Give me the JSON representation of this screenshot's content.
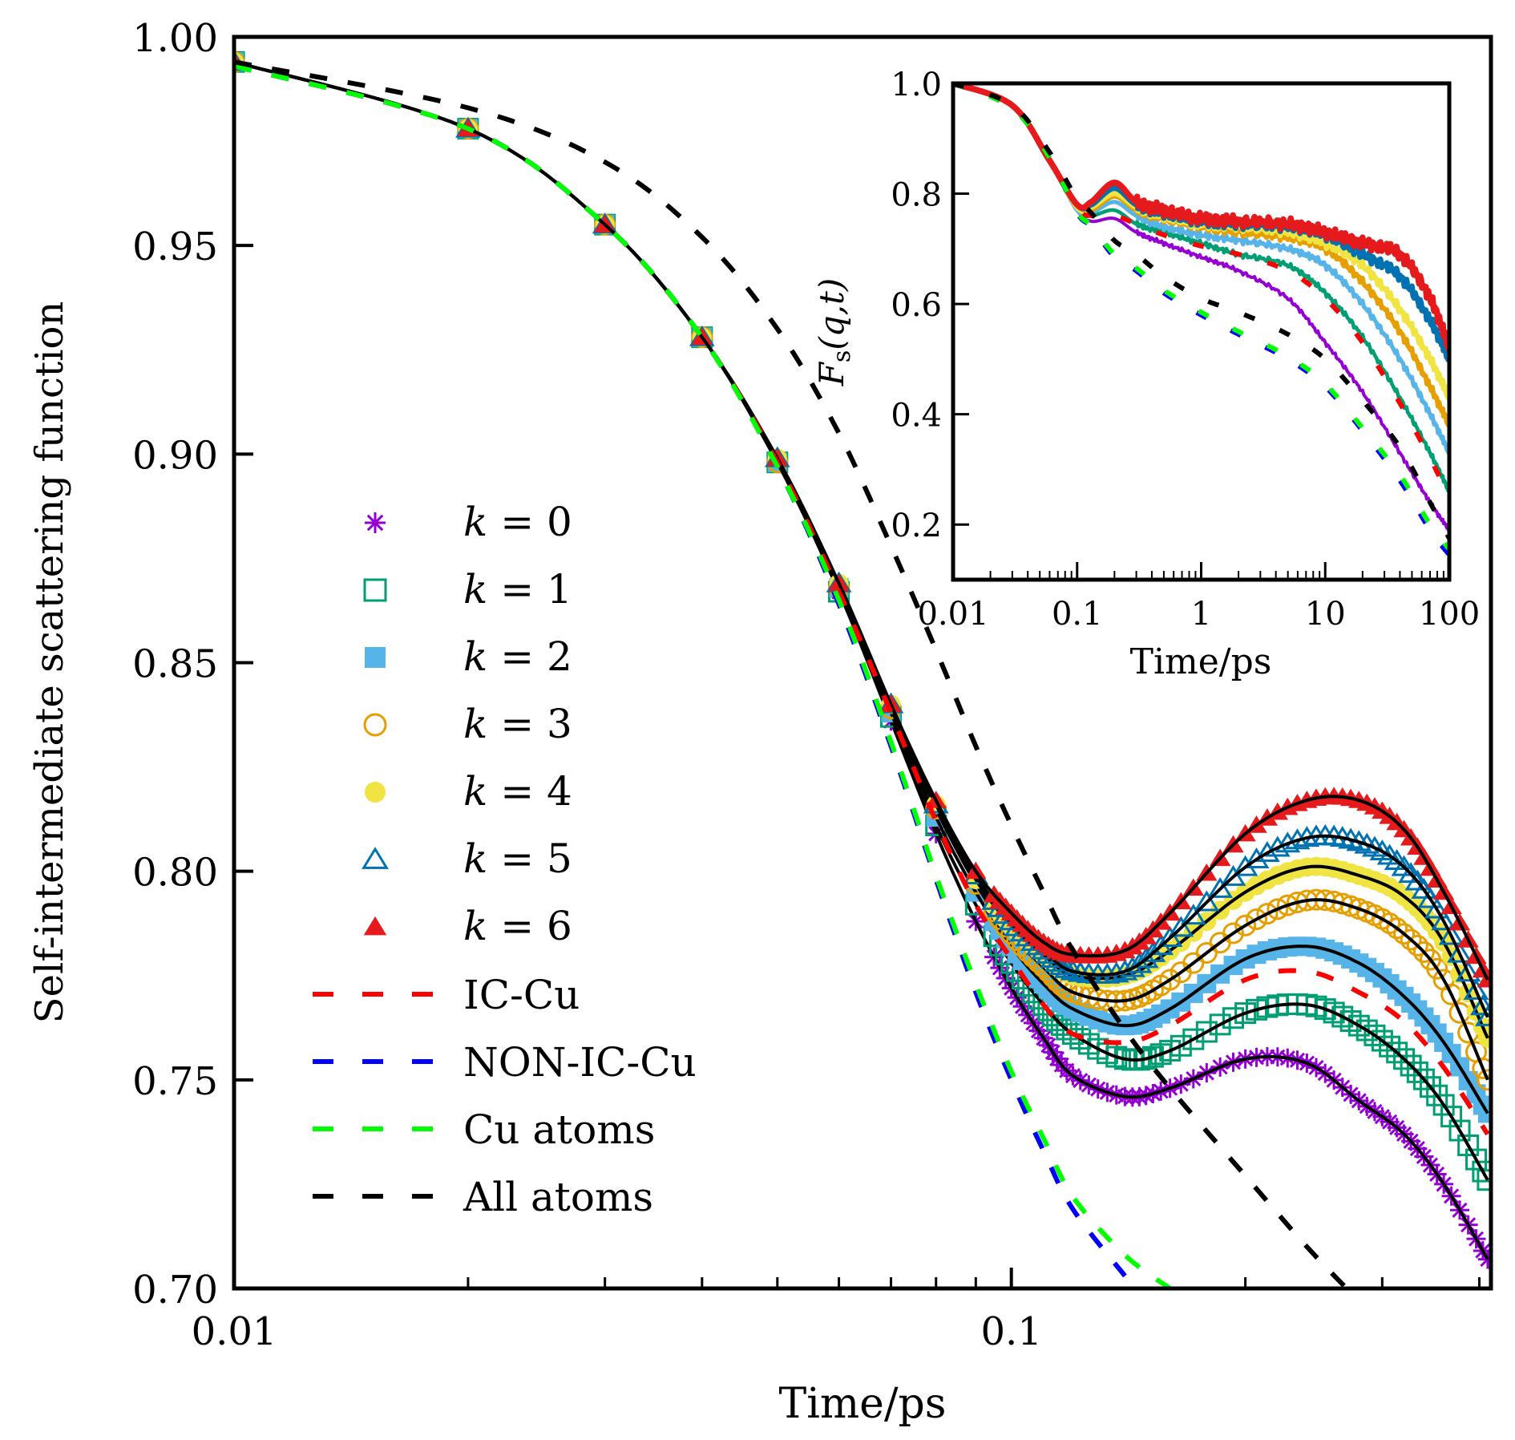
{
  "chart_data": [
    {
      "id": "main",
      "type": "scatter",
      "xscale": "log",
      "xlabel": "Time/ps",
      "ylabel": "Self-intermediate scattering function",
      "xlim": [
        0.01,
        0.414
      ],
      "ylim": [
        0.7,
        1.0
      ],
      "xticks": [
        {
          "value": 0.01,
          "label": "0.01"
        },
        {
          "value": 0.1,
          "label": "0.1"
        }
      ],
      "yticks": [
        {
          "value": 0.7,
          "label": "0.70"
        },
        {
          "value": 0.75,
          "label": "0.75"
        },
        {
          "value": 0.8,
          "label": "0.80"
        },
        {
          "value": 0.85,
          "label": "0.85"
        },
        {
          "value": 0.9,
          "label": "0.90"
        },
        {
          "value": 0.95,
          "label": "0.95"
        },
        {
          "value": 1.0,
          "label": "1.00"
        }
      ],
      "grid": false,
      "legend_position": "center-left",
      "x": [
        0.01,
        0.02,
        0.03,
        0.04,
        0.05,
        0.06,
        0.07,
        0.08,
        0.09,
        0.1,
        0.11,
        0.12,
        0.14,
        0.16,
        0.2,
        0.24,
        0.28,
        0.32,
        0.36,
        0.41
      ],
      "series": [
        {
          "name": "k = 0",
          "label": "k = 0",
          "marker": "asterisk",
          "color": "#9400d3",
          "fill": false,
          "values": [
            0.994,
            0.978,
            0.955,
            0.928,
            0.898,
            0.867,
            0.836,
            0.809,
            0.788,
            0.772,
            0.76,
            0.751,
            0.746,
            0.748,
            0.755,
            0.754,
            0.745,
            0.737,
            0.725,
            0.707
          ]
        },
        {
          "name": "k = 1",
          "label": "k = 1",
          "marker": "square-open",
          "color": "#009e73",
          "fill": false,
          "values": [
            0.994,
            0.978,
            0.955,
            0.928,
            0.898,
            0.867,
            0.837,
            0.811,
            0.792,
            0.778,
            0.768,
            0.761,
            0.755,
            0.757,
            0.766,
            0.768,
            0.763,
            0.755,
            0.744,
            0.726
          ]
        },
        {
          "name": "k = 2",
          "label": "k = 2",
          "marker": "square-filled",
          "color": "#56b4e9",
          "fill": true,
          "values": [
            0.994,
            0.978,
            0.955,
            0.928,
            0.898,
            0.868,
            0.838,
            0.813,
            0.795,
            0.782,
            0.773,
            0.767,
            0.763,
            0.767,
            0.779,
            0.782,
            0.778,
            0.77,
            0.759,
            0.742
          ]
        },
        {
          "name": "k = 3",
          "label": "k = 3",
          "marker": "circle-open",
          "color": "#e69f00",
          "fill": false,
          "values": [
            0.994,
            0.978,
            0.955,
            0.928,
            0.898,
            0.868,
            0.839,
            0.815,
            0.797,
            0.785,
            0.777,
            0.771,
            0.769,
            0.774,
            0.787,
            0.793,
            0.791,
            0.785,
            0.774,
            0.75
          ]
        },
        {
          "name": "k = 4",
          "label": "k = 4",
          "marker": "circle-filled",
          "color": "#f0e442",
          "fill": true,
          "values": [
            0.994,
            0.978,
            0.955,
            0.928,
            0.899,
            0.869,
            0.84,
            0.816,
            0.798,
            0.787,
            0.78,
            0.775,
            0.775,
            0.781,
            0.795,
            0.801,
            0.799,
            0.794,
            0.783,
            0.76
          ]
        },
        {
          "name": "k = 5",
          "label": "k = 5",
          "marker": "triangle-open",
          "color": "#0072b2",
          "fill": false,
          "values": [
            0.994,
            0.978,
            0.955,
            0.928,
            0.899,
            0.869,
            0.84,
            0.816,
            0.799,
            0.788,
            0.781,
            0.776,
            0.776,
            0.784,
            0.801,
            0.808,
            0.807,
            0.801,
            0.788,
            0.765
          ]
        },
        {
          "name": "k = 6",
          "label": "k = 6",
          "marker": "triangle-filled",
          "color": "#e41a1c",
          "fill": true,
          "values": [
            0.994,
            0.978,
            0.955,
            0.928,
            0.899,
            0.869,
            0.84,
            0.817,
            0.8,
            0.79,
            0.783,
            0.78,
            0.781,
            0.79,
            0.809,
            0.817,
            0.817,
            0.81,
            0.795,
            0.774
          ]
        }
      ],
      "lines": [
        {
          "name": "IC-Cu",
          "label": "IC-Cu",
          "style": "dashed",
          "color": "#ff0000",
          "values": [
            0.993,
            0.978,
            0.955,
            0.928,
            0.898,
            0.867,
            0.838,
            0.812,
            0.792,
            0.779,
            0.768,
            0.761,
            0.759,
            0.763,
            0.774,
            0.776,
            0.771,
            0.764,
            0.753,
            0.737
          ]
        },
        {
          "name": "NON-IC-Cu",
          "label": "NON-IC-Cu",
          "style": "dashed",
          "color": "#0000ff",
          "values": [
            0.993,
            0.978,
            0.955,
            0.928,
            0.897,
            0.864,
            0.83,
            0.798,
            0.771,
            0.75,
            0.733,
            0.719,
            0.703,
            null,
            null,
            null,
            null,
            null,
            null,
            null
          ]
        },
        {
          "name": "Cu atoms",
          "label": "Cu atoms",
          "style": "dashed",
          "color": "#00ff00",
          "values": [
            0.993,
            0.978,
            0.955,
            0.928,
            0.897,
            0.865,
            0.831,
            0.799,
            0.773,
            0.752,
            0.736,
            0.722,
            0.708,
            0.7,
            null,
            null,
            null,
            null,
            null,
            null
          ]
        },
        {
          "name": "All atoms",
          "label": "All atoms",
          "style": "dashed",
          "color": "#000000",
          "values": [
            0.994,
            0.983,
            0.97,
            0.952,
            0.93,
            0.905,
            0.878,
            0.853,
            0.83,
            0.811,
            0.795,
            0.781,
            0.762,
            0.748,
            0.727,
            0.71,
            0.697,
            null,
            null,
            null
          ]
        }
      ]
    },
    {
      "id": "inset",
      "type": "line",
      "xscale": "log",
      "xlabel": "Time/ps",
      "ylabel": "Fs(q,t)",
      "ylabel_main": "F",
      "ylabel_sub": "s",
      "ylabel_rest": "(q,t)",
      "xlim": [
        0.01,
        100
      ],
      "ylim": [
        0.1,
        1.0
      ],
      "xticks": [
        {
          "value": 0.01,
          "label": "0.01"
        },
        {
          "value": 0.1,
          "label": "0.1"
        },
        {
          "value": 1,
          "label": "1"
        },
        {
          "value": 10,
          "label": "10"
        },
        {
          "value": 100,
          "label": "100"
        }
      ],
      "yticks": [
        {
          "value": 0.2,
          "label": "0.2"
        },
        {
          "value": 0.4,
          "label": "0.4"
        },
        {
          "value": 0.6,
          "label": "0.6"
        },
        {
          "value": 0.8,
          "label": "0.8"
        },
        {
          "value": 1.0,
          "label": "1.0"
        }
      ],
      "grid": false,
      "x": [
        0.01,
        0.03,
        0.06,
        0.1,
        0.13,
        0.2,
        0.3,
        0.5,
        1,
        2,
        5,
        10,
        20,
        40,
        70,
        100
      ],
      "series": [
        {
          "name": "k = 0",
          "color": "#9400d3",
          "values": [
            1.0,
            0.96,
            0.86,
            0.77,
            0.75,
            0.755,
            0.73,
            0.71,
            0.685,
            0.66,
            0.61,
            0.53,
            0.44,
            0.33,
            0.24,
            0.19
          ]
        },
        {
          "name": "k = 1",
          "color": "#009e73",
          "values": [
            1.0,
            0.96,
            0.86,
            0.77,
            0.76,
            0.77,
            0.745,
            0.73,
            0.71,
            0.69,
            0.67,
            0.62,
            0.54,
            0.43,
            0.33,
            0.26
          ]
        },
        {
          "name": "k = 2",
          "color": "#56b4e9",
          "values": [
            1.0,
            0.96,
            0.86,
            0.77,
            0.765,
            0.785,
            0.76,
            0.74,
            0.725,
            0.715,
            0.7,
            0.67,
            0.6,
            0.5,
            0.4,
            0.33
          ]
        },
        {
          "name": "k = 3",
          "color": "#e69f00",
          "values": [
            1.0,
            0.96,
            0.86,
            0.775,
            0.77,
            0.795,
            0.77,
            0.755,
            0.74,
            0.73,
            0.72,
            0.7,
            0.64,
            0.55,
            0.45,
            0.38
          ]
        },
        {
          "name": "k = 4",
          "color": "#f0e442",
          "values": [
            1.0,
            0.96,
            0.86,
            0.775,
            0.775,
            0.8,
            0.775,
            0.76,
            0.745,
            0.74,
            0.73,
            0.71,
            0.67,
            0.59,
            0.5,
            0.43
          ]
        },
        {
          "name": "k = 5",
          "color": "#0072b2",
          "values": [
            1.0,
            0.96,
            0.86,
            0.78,
            0.78,
            0.81,
            0.78,
            0.765,
            0.75,
            0.745,
            0.74,
            0.725,
            0.69,
            0.65,
            0.57,
            0.5
          ]
        },
        {
          "name": "k = 6",
          "color": "#e41a1c",
          "values": [
            1.0,
            0.96,
            0.86,
            0.78,
            0.785,
            0.82,
            0.785,
            0.77,
            0.755,
            0.75,
            0.745,
            0.73,
            0.71,
            0.69,
            0.61,
            0.52
          ]
        }
      ],
      "lines": [
        {
          "name": "IC-Cu",
          "color": "#ff0000",
          "values": [
            1.0,
            0.955,
            0.865,
            0.775,
            0.76,
            0.76,
            0.745,
            0.725,
            0.705,
            0.69,
            0.66,
            0.61,
            0.53,
            0.42,
            0.32,
            0.25
          ]
        },
        {
          "name": "NON-IC-Cu",
          "color": "#0000ff",
          "values": [
            1.0,
            0.955,
            0.865,
            0.765,
            0.74,
            0.685,
            0.66,
            0.62,
            0.58,
            0.545,
            0.5,
            0.45,
            0.37,
            0.28,
            0.19,
            0.145
          ]
        },
        {
          "name": "Cu atoms",
          "color": "#00ff00",
          "values": [
            1.0,
            0.955,
            0.865,
            0.767,
            0.742,
            0.69,
            0.665,
            0.625,
            0.585,
            0.55,
            0.505,
            0.455,
            0.375,
            0.29,
            0.2,
            0.155
          ]
        },
        {
          "name": "All atoms",
          "color": "#000000",
          "values": [
            1.0,
            0.96,
            0.875,
            0.79,
            0.765,
            0.715,
            0.69,
            0.65,
            0.61,
            0.585,
            0.545,
            0.5,
            0.425,
            0.34,
            0.24,
            0.175
          ]
        }
      ]
    }
  ]
}
